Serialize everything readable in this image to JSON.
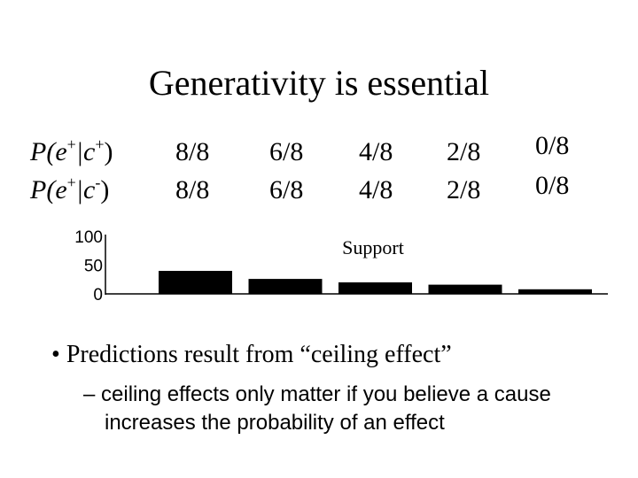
{
  "title": "Generativity is essential",
  "rows": [
    {
      "label_parts": [
        "P(e",
        "+",
        "|c",
        "+",
        ")"
      ],
      "values": [
        "8/8",
        "6/8",
        "4/8",
        "2/8",
        "0/8"
      ]
    },
    {
      "label_parts": [
        "P(e",
        "+",
        "|c",
        "-",
        ")"
      ],
      "values": [
        "8/8",
        "6/8",
        "4/8",
        "2/8",
        "0/8"
      ]
    }
  ],
  "chart_data": {
    "type": "bar",
    "title": "Support",
    "categories": [
      "8/8 vs 8/8",
      "6/8 vs 6/8",
      "4/8 vs 4/8",
      "2/8 vs 2/8",
      "0/8 vs 0/8"
    ],
    "values": [
      40,
      26,
      20,
      16,
      8
    ],
    "y_ticks": [
      "100",
      "50",
      "0"
    ],
    "ylim": [
      0,
      100
    ],
    "bar_color": "#000000"
  },
  "bullet": "Predictions result from “ceiling effect”",
  "subbullet": "– ceiling effects only matter if you believe a cause increases the probability of an effect"
}
